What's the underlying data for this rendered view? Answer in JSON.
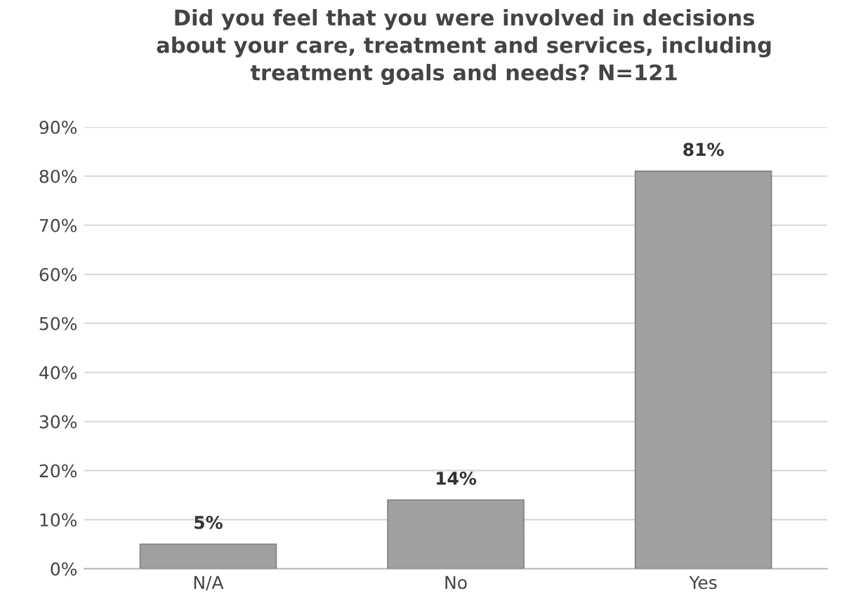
{
  "chart_data": {
    "type": "bar",
    "title": "Did you feel that you were involved in decisions\nabout your care, treatment and services, including\ntreatment goals and needs? N=121",
    "categories": [
      "N/A",
      "No",
      "Yes"
    ],
    "values": [
      5,
      14,
      81
    ],
    "color": "#a0a0a0",
    "value_labels": [
      "5%",
      "14%",
      "81%"
    ],
    "ylim": [
      0,
      90
    ],
    "yticks": [
      {
        "value": 0,
        "label": "0%"
      },
      {
        "value": 10,
        "label": "10%"
      },
      {
        "value": 20,
        "label": "20%"
      },
      {
        "value": 30,
        "label": "30%"
      },
      {
        "value": 40,
        "label": "40%"
      },
      {
        "value": 50,
        "label": "50%"
      },
      {
        "value": 60,
        "label": "60%"
      },
      {
        "value": 70,
        "label": "70%"
      },
      {
        "value": 80,
        "label": "80%"
      },
      {
        "value": 90,
        "label": "90%"
      }
    ],
    "grid": "y"
  }
}
